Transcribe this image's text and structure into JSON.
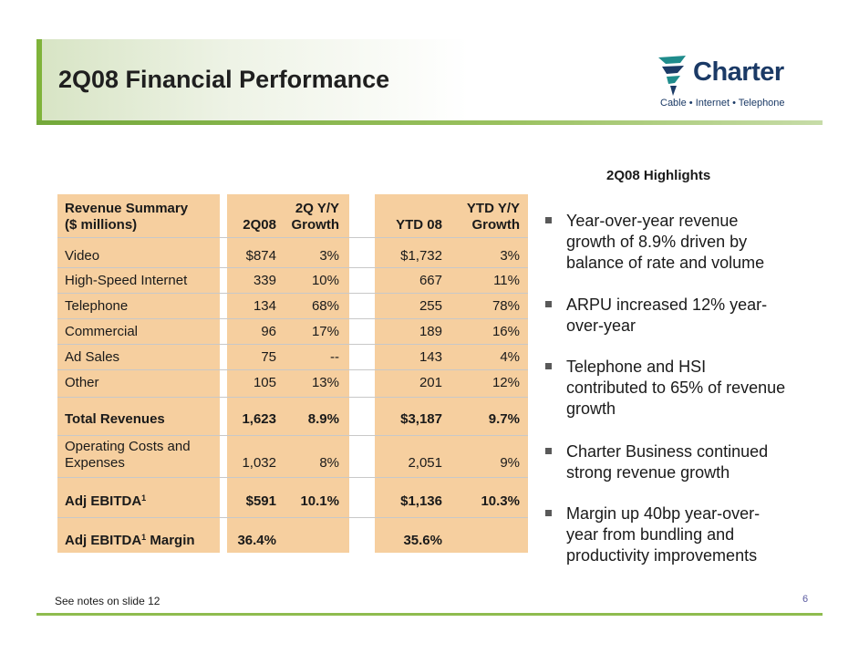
{
  "slide": {
    "title": "2Q08 Financial Performance",
    "logo": {
      "wordmark": "Charter",
      "tagline": "Cable • Internet • Telephone",
      "colors": {
        "navy": "#1b3a66",
        "teal": "#1f8c8c"
      }
    },
    "footnote": "See notes on slide 12",
    "page_number": "6"
  },
  "table": {
    "header": {
      "label_line1": "Revenue Summary",
      "label_line2": "($ millions)",
      "col1": "2Q08",
      "col2_line1": "2Q Y/Y",
      "col2_line2": "Growth",
      "col3": "YTD 08",
      "col4_line1": "YTD Y/Y",
      "col4_line2": "Growth"
    },
    "rows": [
      {
        "label": "Video",
        "q": "$874",
        "q_growth": "3%",
        "ytd": "$1,732",
        "ytd_growth": "3%"
      },
      {
        "label": "High-Speed Internet",
        "q": "339",
        "q_growth": "10%",
        "ytd": "667",
        "ytd_growth": "11%"
      },
      {
        "label": "Telephone",
        "q": "134",
        "q_growth": "68%",
        "ytd": "255",
        "ytd_growth": "78%"
      },
      {
        "label": "Commercial",
        "q": "96",
        "q_growth": "17%",
        "ytd": "189",
        "ytd_growth": "16%"
      },
      {
        "label": "Ad Sales",
        "q": "75",
        "q_growth": "--",
        "ytd": "143",
        "ytd_growth": "4%"
      },
      {
        "label": "Other",
        "q": "105",
        "q_growth": "13%",
        "ytd": "201",
        "ytd_growth": "12%"
      }
    ],
    "total": {
      "label": "Total Revenues",
      "q": "1,623",
      "q_growth": "8.9%",
      "ytd": "$3,187",
      "ytd_growth": "9.7%"
    },
    "opex": {
      "label_line1": "Operating Costs and",
      "label_line2": "Expenses",
      "q": "1,032",
      "q_growth": "8%",
      "ytd": "2,051",
      "ytd_growth": "9%"
    },
    "ebitda": {
      "label": "Adj EBITDA",
      "sup": "1",
      "q": "$591",
      "q_growth": "10.1%",
      "ytd": "$1,136",
      "ytd_growth": "10.3%"
    },
    "margin": {
      "label_pre": "Adj EBITDA",
      "sup": "1",
      "label_post": " Margin",
      "q": "36.4%",
      "ytd": "35.6%"
    }
  },
  "highlights": {
    "title": "2Q08 Highlights",
    "items": [
      {
        "line1": "Year-over-year revenue",
        "line2": "growth of 8.9% driven by",
        "line3": "balance of rate and volume"
      },
      {
        "line1": "ARPU increased 12% year-",
        "line2": "over-year"
      },
      {
        "line1": "Telephone and HSI",
        "line2": "contributed to 65% of revenue",
        "line3": "growth"
      },
      {
        "line1": "Charter Business continued",
        "line2": "strong revenue growth"
      },
      {
        "line1": "Margin up 40bp year-over-",
        "line2": "year from bundling and",
        "line3": "productivity improvements"
      }
    ]
  },
  "colors": {
    "table_fill": "#f6cf9f",
    "title_accent": "#7fb33a",
    "bullet": "#595959"
  }
}
